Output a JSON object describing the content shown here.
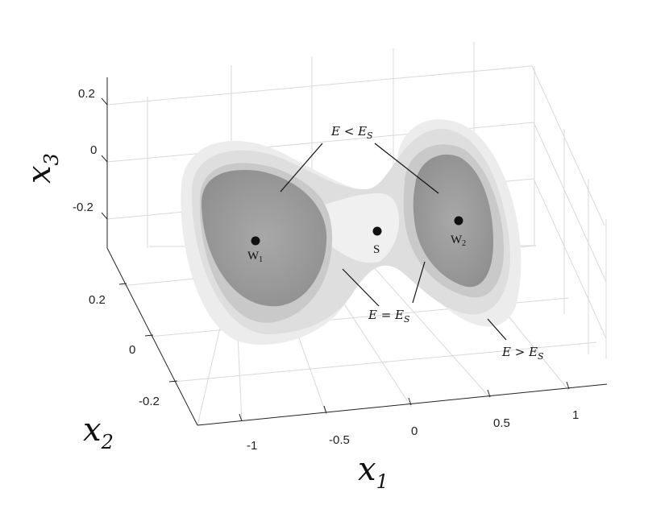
{
  "figure": {
    "axes": {
      "x1": {
        "symbol": "x",
        "subscript": "1",
        "ticks": [
          "-1",
          "-0.5",
          "0",
          "0.5",
          "1"
        ]
      },
      "x2": {
        "symbol": "x",
        "subscript": "2",
        "ticks": [
          "0.2",
          "0",
          "-0.2"
        ]
      },
      "x3": {
        "symbol": "x",
        "subscript": "3",
        "ticks": [
          "0.2",
          "0",
          "-0.2"
        ]
      }
    },
    "energy_levels": {
      "below_saddle": {
        "lhs": "E",
        "rel": " < ",
        "rhs": "E",
        "sub": "S"
      },
      "at_saddle": {
        "lhs": "E",
        "rel": " = ",
        "rhs": "E",
        "sub": "S"
      },
      "above_saddle": {
        "lhs": "E",
        "rel": " > ",
        "rhs": "E",
        "sub": "S"
      }
    },
    "points": {
      "well1": {
        "label": "W",
        "sub": "1"
      },
      "well2": {
        "label": "W",
        "sub": "2"
      },
      "saddle": {
        "label": "S"
      }
    },
    "colors": {
      "outer_shell": "#ebebeb",
      "middle_shell": "#d2d2d2",
      "inner_shell": "#9c9c9c",
      "point": "#111111"
    }
  }
}
